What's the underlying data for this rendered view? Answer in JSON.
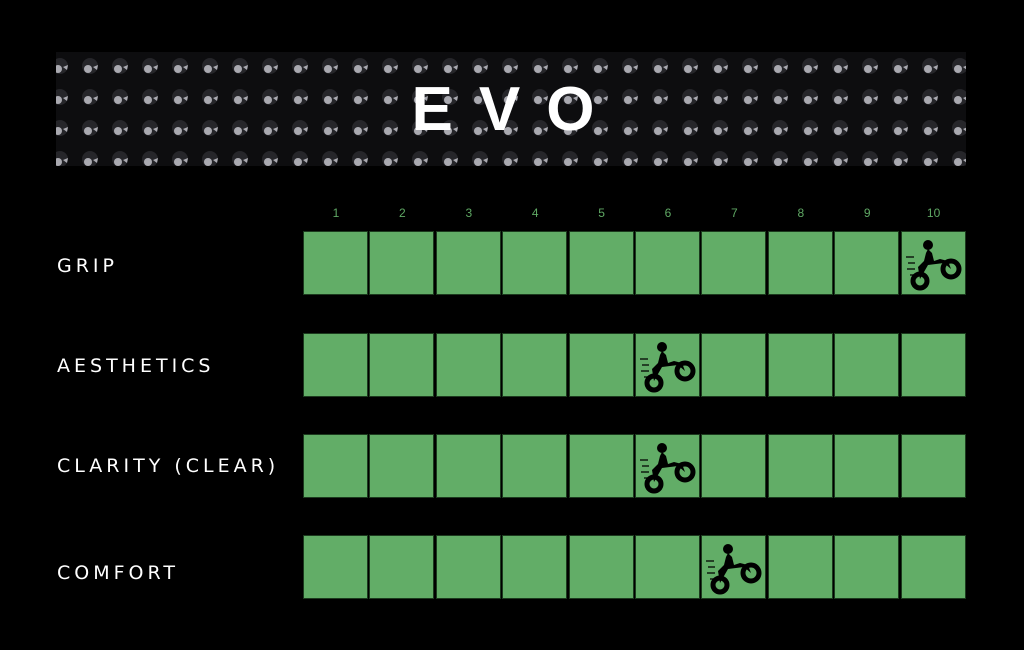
{
  "title": "EVO",
  "chart_data": {
    "type": "table",
    "scale": [
      1,
      2,
      3,
      4,
      5,
      6,
      7,
      8,
      9,
      10
    ],
    "categories": [
      "GRIP",
      "AESTHETICS",
      "CLARITY (CLEAR)",
      "COMFORT"
    ],
    "values": [
      10,
      6,
      6,
      7
    ],
    "marker_icon": "motorcycle-icon",
    "cell_color": "#62ad67",
    "tick_color": "#5fa864"
  }
}
